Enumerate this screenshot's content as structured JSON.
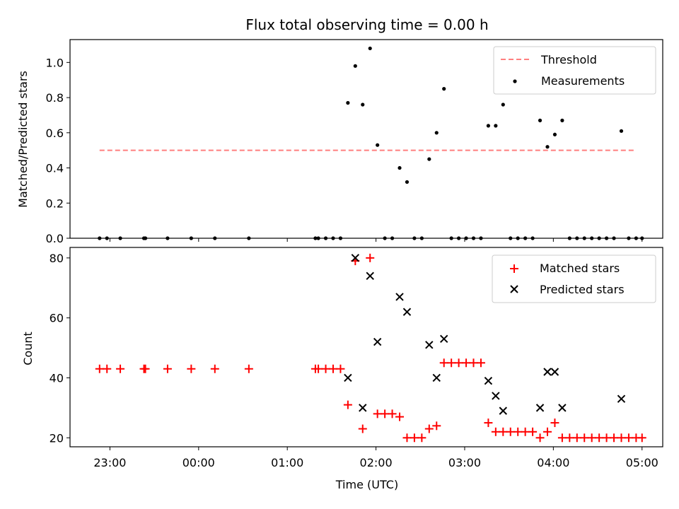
{
  "chart_data": [
    {
      "type": "scatter",
      "title": "Flux total observing time = 0.00 h",
      "xlabel": "",
      "ylabel": "Matched/Predicted stars",
      "xlim": [
        "22:33",
        "05:14"
      ],
      "ylim": [
        0,
        1.13
      ],
      "yticks": [
        "0.0",
        "0.2",
        "0.4",
        "0.6",
        "0.8",
        "1.0"
      ],
      "legend_position": "top-right",
      "threshold": {
        "name": "Threshold",
        "y": 0.5,
        "x_range": [
          "22:53",
          "04:56"
        ],
        "color": "#ff7f7f",
        "style": "dashed"
      },
      "series": [
        {
          "name": "Measurements",
          "color": "#000000",
          "points": [
            [
              "22:53",
              0.0
            ],
            [
              "22:58",
              0.0
            ],
            [
              "23:07",
              0.0
            ],
            [
              "23:23",
              0.0
            ],
            [
              "23:24",
              0.0
            ],
            [
              "23:39",
              0.0
            ],
            [
              "23:55",
              0.0
            ],
            [
              "00:11",
              0.0
            ],
            [
              "00:34",
              0.0
            ],
            [
              "01:19",
              0.0
            ],
            [
              "01:21",
              0.0
            ],
            [
              "01:26",
              0.0
            ],
            [
              "01:31",
              0.0
            ],
            [
              "01:36",
              0.0
            ],
            [
              "01:41",
              0.77
            ],
            [
              "01:46",
              0.98
            ],
            [
              "01:51",
              0.76
            ],
            [
              "01:56",
              1.08
            ],
            [
              "02:01",
              0.53
            ],
            [
              "02:06",
              0.0
            ],
            [
              "02:11",
              0.0
            ],
            [
              "02:16",
              0.4
            ],
            [
              "02:21",
              0.32
            ],
            [
              "02:26",
              0.0
            ],
            [
              "02:31",
              0.0
            ],
            [
              "02:36",
              0.45
            ],
            [
              "02:41",
              0.6
            ],
            [
              "02:46",
              0.85
            ],
            [
              "02:51",
              0.0
            ],
            [
              "02:56",
              0.0
            ],
            [
              "03:01",
              0.0
            ],
            [
              "03:06",
              0.0
            ],
            [
              "03:11",
              0.0
            ],
            [
              "03:16",
              0.64
            ],
            [
              "03:21",
              0.64
            ],
            [
              "03:26",
              0.76
            ],
            [
              "03:31",
              0.0
            ],
            [
              "03:36",
              0.0
            ],
            [
              "03:41",
              0.0
            ],
            [
              "03:46",
              0.0
            ],
            [
              "03:51",
              0.67
            ],
            [
              "03:56",
              0.52
            ],
            [
              "04:01",
              0.59
            ],
            [
              "04:06",
              0.67
            ],
            [
              "04:11",
              0.0
            ],
            [
              "04:16",
              0.0
            ],
            [
              "04:21",
              0.0
            ],
            [
              "04:26",
              0.0
            ],
            [
              "04:31",
              0.0
            ],
            [
              "04:36",
              0.0
            ],
            [
              "04:41",
              0.0
            ],
            [
              "04:46",
              0.61
            ],
            [
              "04:51",
              0.0
            ],
            [
              "04:56",
              0.0
            ],
            [
              "05:00",
              0.0
            ]
          ]
        }
      ]
    },
    {
      "type": "scatter",
      "title": "",
      "xlabel": "Time (UTC)",
      "ylabel": "Count",
      "xlim": [
        "22:33",
        "05:14"
      ],
      "ylim": [
        17,
        83.5
      ],
      "yticks": [
        "20",
        "40",
        "60",
        "80"
      ],
      "xticks": [
        "23:00",
        "00:00",
        "01:00",
        "02:00",
        "03:00",
        "04:00",
        "05:00"
      ],
      "legend_position": "top-right",
      "series": [
        {
          "name": "Matched stars",
          "marker": "plus",
          "color": "#ff0000",
          "points": [
            [
              "22:53",
              43
            ],
            [
              "22:58",
              43
            ],
            [
              "23:07",
              43
            ],
            [
              "23:23",
              43
            ],
            [
              "23:24",
              43
            ],
            [
              "23:39",
              43
            ],
            [
              "23:55",
              43
            ],
            [
              "00:11",
              43
            ],
            [
              "00:34",
              43
            ],
            [
              "01:19",
              43
            ],
            [
              "01:21",
              43
            ],
            [
              "01:26",
              43
            ],
            [
              "01:31",
              43
            ],
            [
              "01:36",
              43
            ],
            [
              "01:41",
              31
            ],
            [
              "01:46",
              79
            ],
            [
              "01:51",
              23
            ],
            [
              "01:56",
              80
            ],
            [
              "02:01",
              28
            ],
            [
              "02:06",
              28
            ],
            [
              "02:11",
              28
            ],
            [
              "02:16",
              27
            ],
            [
              "02:21",
              20
            ],
            [
              "02:26",
              20
            ],
            [
              "02:31",
              20
            ],
            [
              "02:36",
              23
            ],
            [
              "02:41",
              24
            ],
            [
              "02:46",
              45
            ],
            [
              "02:51",
              45
            ],
            [
              "02:56",
              45
            ],
            [
              "03:01",
              45
            ],
            [
              "03:06",
              45
            ],
            [
              "03:11",
              45
            ],
            [
              "03:16",
              25
            ],
            [
              "03:21",
              22
            ],
            [
              "03:26",
              22
            ],
            [
              "03:31",
              22
            ],
            [
              "03:36",
              22
            ],
            [
              "03:41",
              22
            ],
            [
              "03:46",
              22
            ],
            [
              "03:51",
              20
            ],
            [
              "03:56",
              22
            ],
            [
              "04:01",
              25
            ],
            [
              "04:06",
              20
            ],
            [
              "04:11",
              20
            ],
            [
              "04:16",
              20
            ],
            [
              "04:21",
              20
            ],
            [
              "04:26",
              20
            ],
            [
              "04:31",
              20
            ],
            [
              "04:36",
              20
            ],
            [
              "04:41",
              20
            ],
            [
              "04:46",
              20
            ],
            [
              "04:51",
              20
            ],
            [
              "04:56",
              20
            ],
            [
              "05:00",
              20
            ]
          ]
        },
        {
          "name": "Predicted stars",
          "marker": "x",
          "color": "#000000",
          "points": [
            [
              "01:41",
              40
            ],
            [
              "01:46",
              80
            ],
            [
              "01:51",
              30
            ],
            [
              "01:56",
              74
            ],
            [
              "02:01",
              52
            ],
            [
              "02:16",
              67
            ],
            [
              "02:21",
              62
            ],
            [
              "02:36",
              51
            ],
            [
              "02:41",
              40
            ],
            [
              "02:46",
              53
            ],
            [
              "03:16",
              39
            ],
            [
              "03:21",
              34
            ],
            [
              "03:26",
              29
            ],
            [
              "03:51",
              30
            ],
            [
              "03:56",
              42
            ],
            [
              "04:01",
              42
            ],
            [
              "04:06",
              30
            ],
            [
              "04:46",
              33
            ]
          ]
        }
      ]
    }
  ]
}
